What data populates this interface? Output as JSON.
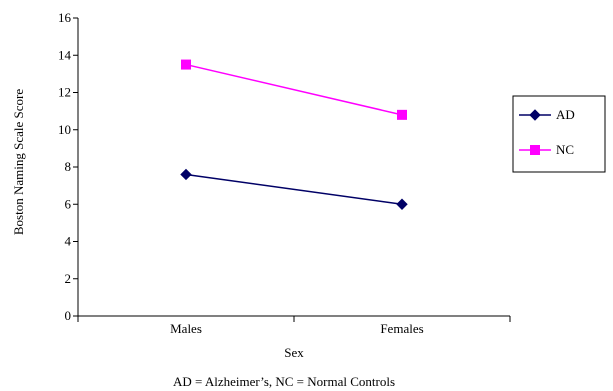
{
  "chart_data": {
    "type": "line",
    "title": "",
    "xlabel": "Sex",
    "ylabel": "Boston Naming Scale Score",
    "categories": [
      "Males",
      "Females"
    ],
    "ylim": [
      0,
      16
    ],
    "yticks": [
      "0",
      "2",
      "4",
      "6",
      "8",
      "10",
      "12",
      "14",
      "16"
    ],
    "grid": false,
    "legend_position": "right",
    "series": [
      {
        "name": "AD",
        "values": [
          7.6,
          6.0
        ],
        "color": "#000066",
        "marker": "diamond"
      },
      {
        "name": "NC",
        "values": [
          13.5,
          10.8
        ],
        "color": "#ff00ff",
        "marker": "square"
      }
    ],
    "footnote": "AD = Alzheimer’s, NC = Normal Controls"
  }
}
